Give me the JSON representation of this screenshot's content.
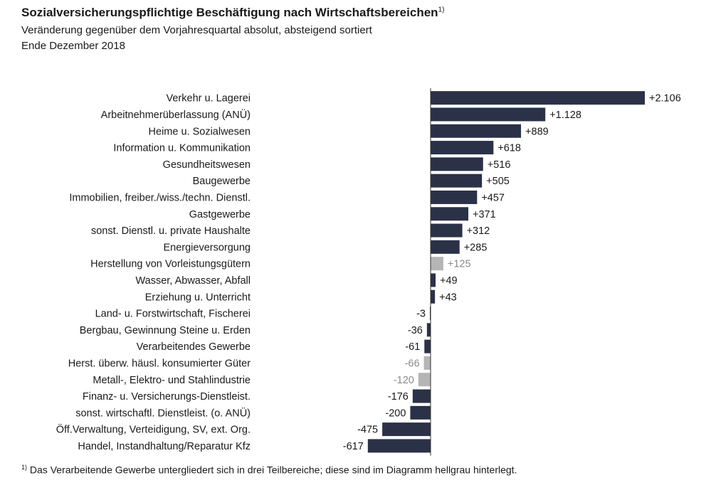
{
  "header": {
    "title": "Sozialversicherungspflichtige Beschäftigung nach Wirtschaftsbereichen",
    "title_footnote_marker": "1)",
    "subtitle": "Veränderung gegenüber dem Vorjahresquartal absolut, absteigend sortiert",
    "period": "Ende Dezember 2018"
  },
  "footnote": {
    "marker": "1)",
    "text": "Das Verarbeitende Gewerbe  untergliedert sich in drei  Teilbereiche; diese sind im Diagramm hellgrau hinterlegt."
  },
  "colors": {
    "main_bar": "#2b3147",
    "sub_bar": "#b5b5b5",
    "main_label": "#1a1a1a",
    "sub_label": "#8a8a8a",
    "axis": "#333333"
  },
  "chart_data": {
    "type": "bar",
    "orientation": "horizontal",
    "categories": [
      "Verkehr u. Lagerei",
      "Arbeitnehmerüberlassung (ANÜ)",
      "Heime u. Sozialwesen",
      "Information u. Kommunikation",
      "Gesundheitswesen",
      "Baugewerbe",
      "Immobilien, freiber./wiss./techn. Dienstl.",
      "Gastgewerbe",
      "sonst. Dienstl. u. private Haushalte",
      "Energieversorgung",
      "Herstellung von Vorleistungsgütern",
      "Wasser, Abwasser, Abfall",
      "Erziehung u. Unterricht",
      "Land- u. Forstwirtschaft, Fischerei",
      "Bergbau, Gewinnung Steine u. Erden",
      "Verarbeitendes Gewerbe",
      "Herst. überw. häusl. konsumierter Güter",
      "Metall-, Elektro- und Stahlindustrie",
      "Finanz- u. Versicherungs-Dienstleist.",
      "sonst. wirtschaftl. Dienstleist. (o. ANÜ)",
      "Öff.Verwaltung, Verteidigung, SV, ext. Org.",
      "Handel, Instandhaltung/Reparatur Kfz"
    ],
    "values": [
      2106,
      1128,
      889,
      618,
      516,
      505,
      457,
      371,
      312,
      285,
      125,
      49,
      43,
      -3,
      -36,
      -61,
      -66,
      -120,
      -176,
      -200,
      -475,
      -617
    ],
    "value_labels": [
      "+2.106",
      "+1.128",
      "+889",
      "+618",
      "+516",
      "+505",
      "+457",
      "+371",
      "+312",
      "+285",
      "+125",
      "+49",
      "+43",
      "-3",
      "-36",
      "-61",
      "-66",
      "-120",
      "-176",
      "-200",
      "-475",
      "-617"
    ],
    "subsector_flags": [
      false,
      false,
      false,
      false,
      false,
      false,
      false,
      false,
      false,
      false,
      true,
      false,
      false,
      false,
      false,
      false,
      true,
      true,
      false,
      false,
      false,
      false
    ],
    "xlim": [
      -617,
      2106
    ],
    "grid": false,
    "legend": "none"
  }
}
